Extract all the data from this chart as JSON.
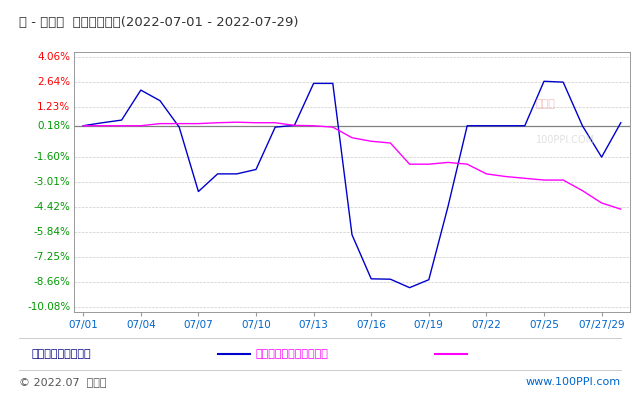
{
  "title": "镍 - 不锈钢  价格趋势比较(2022-07-01 - 2022-07-29)",
  "xlabel_dates": [
    "07/01",
    "07/04",
    "07/07",
    "07/10",
    "07/13",
    "07/16",
    "07/19",
    "07/22",
    "07/25",
    "07/27/29"
  ],
  "x_tick_positions": [
    0,
    3,
    6,
    9,
    12,
    15,
    18,
    21,
    24,
    27
  ],
  "ylim": [
    -10.08,
    4.06
  ],
  "yticks": [
    4.06,
    2.64,
    1.23,
    0.18,
    -1.6,
    -3.01,
    -4.42,
    -5.84,
    -7.25,
    -8.66,
    -10.08
  ],
  "ytick_labels": [
    "4.06%",
    "2.64%",
    "1.23%",
    "0.18%",
    "-1.60%",
    "-3.01%",
    "-4.42%",
    "-5.84%",
    "-7.25%",
    "-8.66%",
    "-10.08%"
  ],
  "zero_line": 0.18,
  "nickel_x": [
    0,
    1,
    2,
    3,
    4,
    5,
    6,
    7,
    8,
    9,
    10,
    11,
    12,
    13,
    14,
    15,
    16,
    17,
    18,
    19,
    20,
    21,
    22,
    23,
    24,
    25,
    26,
    27,
    28
  ],
  "nickel_y": [
    0.18,
    0.35,
    0.5,
    2.2,
    1.6,
    0.1,
    -3.55,
    -2.55,
    -2.55,
    -2.3,
    0.1,
    0.2,
    2.58,
    2.58,
    -6.0,
    -8.5,
    -8.52,
    -9.0,
    -8.55,
    -4.4,
    0.18,
    0.18,
    0.18,
    0.18,
    2.7,
    2.65,
    0.18,
    -1.6,
    0.35
  ],
  "steel_x": [
    0,
    1,
    2,
    3,
    4,
    5,
    6,
    7,
    8,
    9,
    10,
    11,
    12,
    13,
    14,
    15,
    16,
    17,
    18,
    19,
    20,
    21,
    22,
    23,
    24,
    25,
    26,
    27,
    28
  ],
  "steel_y": [
    0.18,
    0.18,
    0.18,
    0.18,
    0.3,
    0.3,
    0.3,
    0.35,
    0.38,
    0.35,
    0.35,
    0.2,
    0.18,
    0.1,
    -0.5,
    -0.7,
    -0.8,
    -2.0,
    -2.0,
    -1.9,
    -2.0,
    -2.55,
    -2.7,
    -2.8,
    -2.9,
    -2.9,
    -3.5,
    -4.2,
    -4.55
  ],
  "nickel_color": "#0000CD",
  "steel_color": "#FF00FF",
  "grid_color": "#CCCCCC",
  "bg_color": "#FFFFFF",
  "plot_bg_color": "#FFFFFF",
  "title_color": "#333333",
  "ytick_color_pos": "#FF0000",
  "ytick_color_neg": "#009900",
  "zero_line_color": "#808080",
  "legend_nickel": "镍现货价格变化幅度",
  "legend_steel": "不锈钢现货价格变化幅度",
  "footer_left": "© 2022.07  生意社",
  "footer_right": "www.100PPI.com",
  "watermark_line1": "生意社",
  "watermark_line2": "100PPI.COM"
}
